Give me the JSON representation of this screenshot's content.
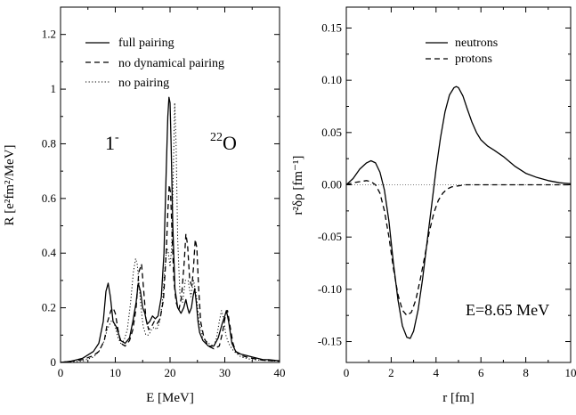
{
  "chart_data": [
    {
      "type": "line",
      "xlabel": "E [MeV]",
      "ylabel": "R [e²fm²/MeV]",
      "xlim": [
        0,
        40
      ],
      "ylim": [
        0,
        1.3
      ],
      "xticks": [
        "0",
        "10",
        "20",
        "30",
        "40"
      ],
      "yticks": [
        "0",
        "0.2",
        "0.4",
        "0.6",
        "0.8",
        "1",
        "1.2"
      ],
      "legend_position": "top-left",
      "annotations": [
        {
          "base": "1",
          "sup": "-"
        },
        {
          "pre": "22",
          "base": "O"
        }
      ],
      "series": [
        {
          "name": "full pairing",
          "style": "solid",
          "x": [
            0,
            2,
            4,
            6,
            7,
            7.8,
            8.3,
            8.7,
            9.1,
            9.6,
            10.2,
            11,
            11.8,
            12.6,
            13.2,
            13.8,
            14.2,
            14.6,
            15,
            15.4,
            15.8,
            16.3,
            16.8,
            17.3,
            17.8,
            18.4,
            18.9,
            19.3,
            19.6,
            19.8,
            20,
            20.2,
            20.5,
            20.9,
            21.4,
            22,
            22.5,
            22.9,
            23.2,
            23.5,
            23.9,
            24.2,
            24.5,
            24.8,
            25.1,
            25.4,
            26,
            27,
            28,
            28.8,
            29.5,
            30,
            30.3,
            30.7,
            31.3,
            32,
            33,
            34,
            35,
            36,
            37,
            38,
            39,
            40
          ],
          "y": [
            0,
            0.005,
            0.015,
            0.04,
            0.07,
            0.15,
            0.26,
            0.29,
            0.24,
            0.15,
            0.13,
            0.08,
            0.07,
            0.09,
            0.15,
            0.22,
            0.29,
            0.26,
            0.2,
            0.18,
            0.14,
            0.15,
            0.17,
            0.16,
            0.17,
            0.24,
            0.4,
            0.7,
            0.9,
            0.97,
            0.95,
            0.8,
            0.5,
            0.27,
            0.2,
            0.18,
            0.2,
            0.23,
            0.2,
            0.18,
            0.2,
            0.24,
            0.27,
            0.22,
            0.15,
            0.11,
            0.08,
            0.06,
            0.06,
            0.09,
            0.14,
            0.17,
            0.19,
            0.15,
            0.07,
            0.04,
            0.03,
            0.025,
            0.02,
            0.015,
            0.01,
            0.01,
            0.008,
            0.006
          ]
        },
        {
          "name": "no dynamical pairing",
          "style": "dashed",
          "x": [
            0,
            2,
            4,
            6,
            7,
            8,
            8.6,
            9.2,
            9.6,
            10,
            10.5,
            11,
            11.8,
            12.6,
            13.2,
            13.8,
            14.3,
            14.8,
            15.2,
            15.6,
            16.1,
            16.6,
            17.1,
            17.6,
            18.2,
            18.8,
            19.3,
            19.6,
            19.85,
            20.1,
            20.4,
            20.7,
            21.1,
            21.6,
            22.1,
            22.6,
            22.9,
            23.2,
            23.6,
            24,
            24.3,
            24.6,
            24.9,
            25.2,
            25.6,
            26.2,
            27,
            28,
            29,
            29.6,
            30.1,
            30.5,
            30.9,
            31.5,
            32,
            33,
            35,
            37,
            40
          ],
          "y": [
            0,
            0.005,
            0.01,
            0.025,
            0.04,
            0.08,
            0.15,
            0.19,
            0.2,
            0.18,
            0.12,
            0.07,
            0.06,
            0.08,
            0.12,
            0.2,
            0.33,
            0.36,
            0.26,
            0.16,
            0.12,
            0.13,
            0.15,
            0.14,
            0.16,
            0.23,
            0.4,
            0.55,
            0.65,
            0.62,
            0.45,
            0.3,
            0.22,
            0.19,
            0.24,
            0.37,
            0.47,
            0.43,
            0.3,
            0.28,
            0.35,
            0.45,
            0.42,
            0.28,
            0.15,
            0.09,
            0.06,
            0.05,
            0.06,
            0.11,
            0.17,
            0.19,
            0.14,
            0.07,
            0.04,
            0.025,
            0.015,
            0.008,
            0.005
          ]
        },
        {
          "name": "no pairing",
          "style": "dotted",
          "x": [
            0,
            4,
            6,
            7,
            8,
            8.5,
            9,
            9.5,
            10,
            10.5,
            11,
            11.6,
            12.2,
            12.8,
            13.3,
            13.7,
            14,
            14.3,
            14.7,
            15.1,
            15.6,
            16.1,
            16.6,
            17.1,
            17.6,
            18.1,
            18.6,
            19,
            19.4,
            19.7,
            20,
            20.3,
            20.6,
            20.85,
            21.1,
            21.4,
            21.8,
            22.3,
            22.8,
            23.3,
            23.8,
            24.3,
            24.8,
            25.3,
            26,
            27,
            28,
            28.5,
            29,
            29.4,
            29.8,
            30.2,
            30.7,
            31.3,
            32,
            33,
            35,
            40
          ],
          "y": [
            0,
            0.005,
            0.02,
            0.04,
            0.08,
            0.12,
            0.14,
            0.16,
            0.13,
            0.09,
            0.07,
            0.08,
            0.12,
            0.22,
            0.33,
            0.38,
            0.36,
            0.3,
            0.2,
            0.13,
            0.1,
            0.1,
            0.12,
            0.13,
            0.12,
            0.15,
            0.22,
            0.33,
            0.42,
            0.4,
            0.35,
            0.42,
            0.7,
            0.95,
            0.8,
            0.45,
            0.25,
            0.22,
            0.3,
            0.3,
            0.24,
            0.3,
            0.25,
            0.15,
            0.09,
            0.07,
            0.06,
            0.09,
            0.15,
            0.19,
            0.16,
            0.1,
            0.07,
            0.05,
            0.035,
            0.02,
            0.01,
            0.004
          ]
        }
      ]
    },
    {
      "type": "line",
      "xlabel": "r [fm]",
      "ylabel": "r²δρ [fm⁻¹]",
      "xlim": [
        0,
        10
      ],
      "ylim": [
        -0.17,
        0.17
      ],
      "xticks": [
        "0",
        "2",
        "4",
        "6",
        "8",
        "10"
      ],
      "yticks": [
        "-0.15",
        "-0.10",
        "-0.05",
        "0.00",
        "0.05",
        "0.10",
        "0.15"
      ],
      "legend_position": "top-right",
      "annotations": [
        {
          "text": "E=8.65 MeV"
        }
      ],
      "baseline": {
        "y": 0,
        "style": "dotted"
      },
      "series": [
        {
          "name": "neutrons",
          "style": "solid",
          "x": [
            0,
            0.3,
            0.6,
            0.9,
            1.1,
            1.3,
            1.5,
            1.7,
            1.9,
            2.1,
            2.3,
            2.5,
            2.7,
            2.85,
            3,
            3.2,
            3.4,
            3.6,
            3.8,
            4,
            4.2,
            4.4,
            4.6,
            4.8,
            4.9,
            5,
            5.2,
            5.4,
            5.6,
            5.8,
            6,
            6.3,
            6.6,
            7,
            7.5,
            8,
            8.5,
            9,
            9.5,
            10
          ],
          "y": [
            0,
            0.006,
            0.015,
            0.021,
            0.023,
            0.021,
            0.012,
            -0.005,
            -0.035,
            -0.075,
            -0.11,
            -0.135,
            -0.146,
            -0.147,
            -0.14,
            -0.12,
            -0.09,
            -0.055,
            -0.02,
            0.015,
            0.045,
            0.07,
            0.086,
            0.093,
            0.094,
            0.093,
            0.085,
            0.072,
            0.06,
            0.05,
            0.043,
            0.037,
            0.033,
            0.027,
            0.018,
            0.011,
            0.007,
            0.004,
            0.002,
            0.001
          ]
        },
        {
          "name": "protons",
          "style": "dashed",
          "x": [
            0,
            0.3,
            0.6,
            0.9,
            1.1,
            1.3,
            1.5,
            1.7,
            1.9,
            2.1,
            2.3,
            2.5,
            2.7,
            2.9,
            3.1,
            3.3,
            3.5,
            3.7,
            3.9,
            4.1,
            4.3,
            4.5,
            4.7,
            5,
            5.3,
            5.6,
            6,
            7,
            8,
            9,
            10
          ],
          "y": [
            0,
            0.002,
            0.003,
            0.004,
            0.003,
            0,
            -0.008,
            -0.025,
            -0.05,
            -0.08,
            -0.105,
            -0.12,
            -0.125,
            -0.122,
            -0.11,
            -0.09,
            -0.068,
            -0.045,
            -0.027,
            -0.015,
            -0.008,
            -0.004,
            -0.002,
            -0.001,
            0,
            0,
            0,
            0,
            0,
            0,
            0
          ]
        }
      ]
    }
  ]
}
